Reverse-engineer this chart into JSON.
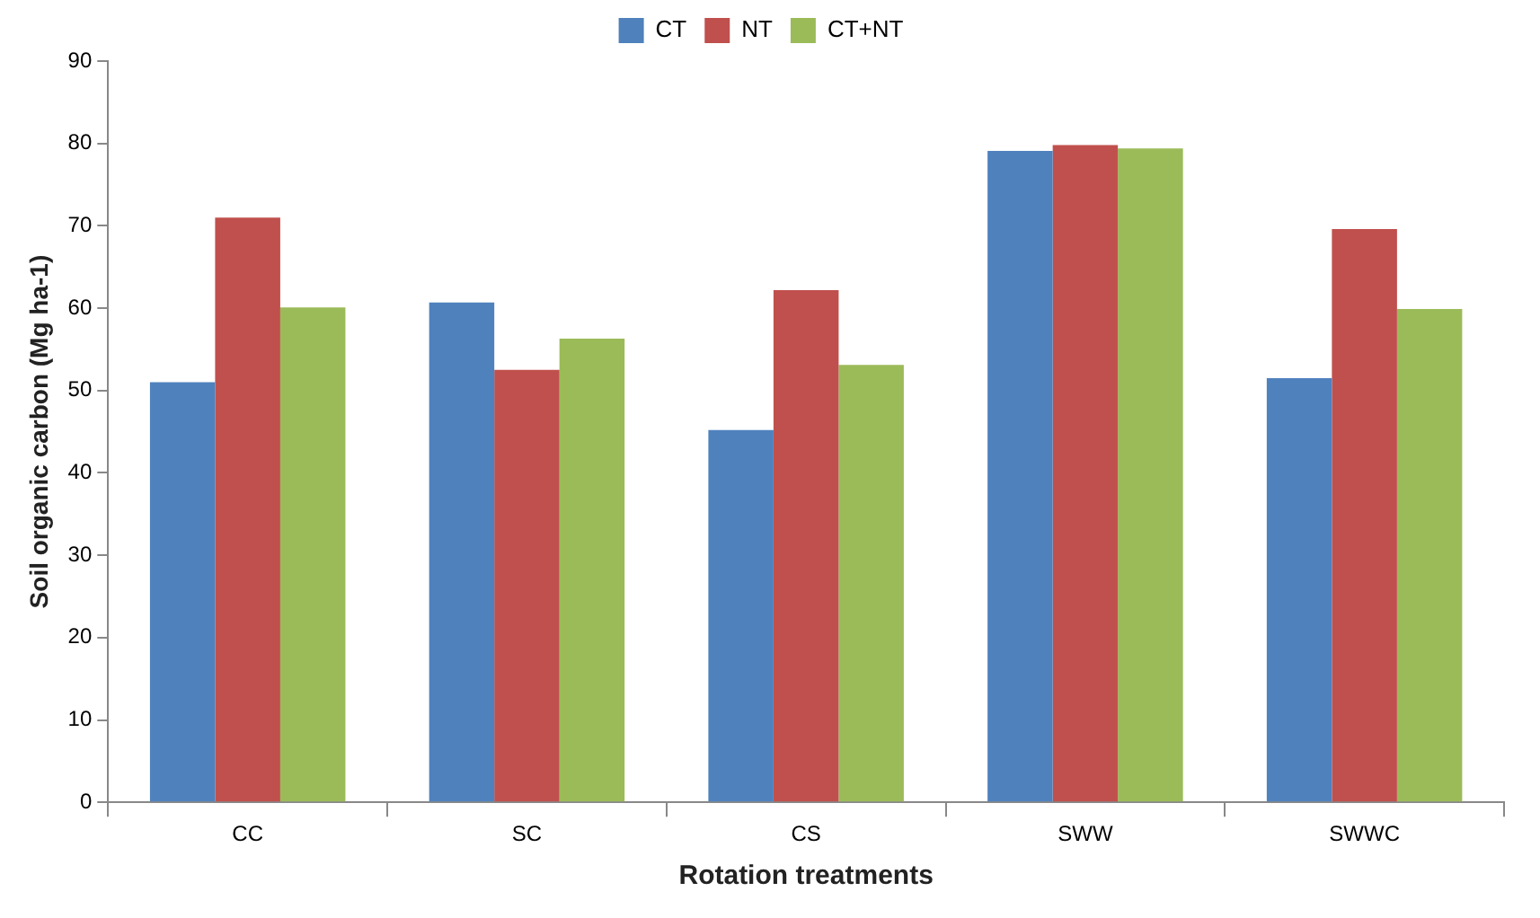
{
  "chart_data": {
    "type": "bar",
    "xlabel": "Rotation treatments",
    "ylabel": "Soil organic carbon (Mg ha-1)",
    "categories": [
      "CC",
      "SC",
      "CS",
      "SWW",
      "SWWC"
    ],
    "series": [
      {
        "name": "CT",
        "color": "#4f81bd",
        "values": [
          51,
          60.7,
          45.2,
          79.1,
          51.5
        ]
      },
      {
        "name": "NT",
        "color": "#c0504d",
        "values": [
          71,
          52.5,
          62.2,
          79.8,
          69.6
        ]
      },
      {
        "name": "CT+NT",
        "color": "#9bbb59",
        "values": [
          60.1,
          56.3,
          53.1,
          79.4,
          59.9
        ]
      }
    ],
    "ylim": [
      0,
      90
    ],
    "yticks": [
      0,
      10,
      20,
      30,
      40,
      50,
      60,
      70,
      80,
      90
    ],
    "grid": false,
    "legend": "top"
  }
}
